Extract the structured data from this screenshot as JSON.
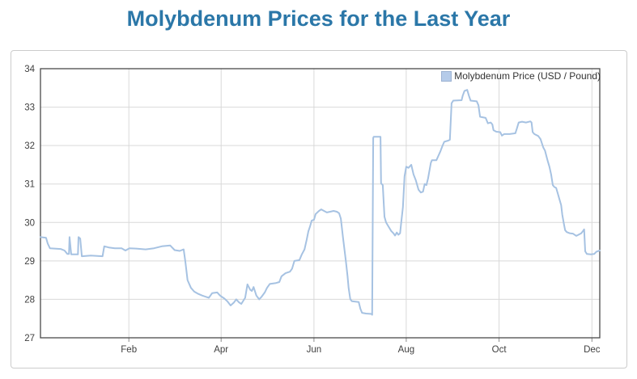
{
  "page": {
    "title": "Molybdenum Prices for the Last Year"
  },
  "colors": {
    "title": "#2b77a8",
    "line": "#a6c2e2",
    "grid": "#d9d9d9",
    "frame": "#4a4a4a",
    "tick": "#8a8a8a",
    "axis_label": "#404040",
    "panel_border": "#cccccc",
    "legend_text": "#333333",
    "legend_swatch_fill": "#b5cbe9",
    "legend_swatch_border": "#9db3d3"
  },
  "legend": {
    "label": "Molybdenum Price (USD / Pound)"
  },
  "chart_data": {
    "type": "line",
    "title": "Molybdenum Prices for the Last Year",
    "series_label": "Molybdenum Price (USD / Pound)",
    "xlabel": "",
    "ylabel": "",
    "unit": "USD / Pound",
    "ylim": [
      27,
      34
    ],
    "yticks": [
      27,
      28,
      29,
      30,
      31,
      32,
      33,
      34
    ],
    "xticks": [
      {
        "label": "Feb",
        "t": 0.158
      },
      {
        "label": "Apr",
        "t": 0.323
      },
      {
        "label": "Jun",
        "t": 0.489
      },
      {
        "label": "Aug",
        "t": 0.654
      },
      {
        "label": "Oct",
        "t": 0.82
      },
      {
        "label": "Dec",
        "t": 0.986
      }
    ],
    "x_span": "trailing 12 months (early Dec to early Dec)",
    "grid": true,
    "legend_position": "top-right",
    "series": [
      {
        "name": "Molybdenum Price (USD / Pound)",
        "points": [
          [
            0.0,
            29.62
          ],
          [
            0.01,
            29.6
          ],
          [
            0.013,
            29.45
          ],
          [
            0.017,
            29.33
          ],
          [
            0.036,
            29.31
          ],
          [
            0.043,
            29.27
          ],
          [
            0.048,
            29.18
          ],
          [
            0.051,
            29.18
          ],
          [
            0.052,
            29.62
          ],
          [
            0.055,
            29.17
          ],
          [
            0.067,
            29.17
          ],
          [
            0.068,
            29.62
          ],
          [
            0.071,
            29.58
          ],
          [
            0.074,
            29.12
          ],
          [
            0.09,
            29.14
          ],
          [
            0.111,
            29.12
          ],
          [
            0.114,
            29.38
          ],
          [
            0.122,
            29.35
          ],
          [
            0.133,
            29.33
          ],
          [
            0.145,
            29.33
          ],
          [
            0.152,
            29.27
          ],
          [
            0.159,
            29.33
          ],
          [
            0.171,
            29.32
          ],
          [
            0.188,
            29.3
          ],
          [
            0.203,
            29.33
          ],
          [
            0.217,
            29.38
          ],
          [
            0.232,
            29.4
          ],
          [
            0.24,
            29.28
          ],
          [
            0.249,
            29.26
          ],
          [
            0.256,
            29.3
          ],
          [
            0.259,
            28.98
          ],
          [
            0.263,
            28.5
          ],
          [
            0.269,
            28.3
          ],
          [
            0.275,
            28.2
          ],
          [
            0.281,
            28.15
          ],
          [
            0.289,
            28.1
          ],
          [
            0.297,
            28.06
          ],
          [
            0.301,
            28.04
          ],
          [
            0.307,
            28.16
          ],
          [
            0.316,
            28.18
          ],
          [
            0.321,
            28.1
          ],
          [
            0.329,
            28.02
          ],
          [
            0.334,
            27.95
          ],
          [
            0.34,
            27.84
          ],
          [
            0.346,
            27.92
          ],
          [
            0.35,
            28.0
          ],
          [
            0.355,
            27.92
          ],
          [
            0.359,
            27.88
          ],
          [
            0.366,
            28.04
          ],
          [
            0.37,
            28.39
          ],
          [
            0.375,
            28.25
          ],
          [
            0.378,
            28.22
          ],
          [
            0.381,
            28.32
          ],
          [
            0.386,
            28.1
          ],
          [
            0.391,
            28.0
          ],
          [
            0.395,
            28.06
          ],
          [
            0.401,
            28.18
          ],
          [
            0.405,
            28.3
          ],
          [
            0.41,
            28.4
          ],
          [
            0.42,
            28.42
          ],
          [
            0.427,
            28.45
          ],
          [
            0.431,
            28.6
          ],
          [
            0.438,
            28.68
          ],
          [
            0.446,
            28.72
          ],
          [
            0.45,
            28.8
          ],
          [
            0.454,
            29.0
          ],
          [
            0.463,
            29.02
          ],
          [
            0.467,
            29.16
          ],
          [
            0.472,
            29.3
          ],
          [
            0.476,
            29.55
          ],
          [
            0.479,
            29.77
          ],
          [
            0.482,
            29.9
          ],
          [
            0.485,
            30.05
          ],
          [
            0.489,
            30.07
          ],
          [
            0.492,
            30.22
          ],
          [
            0.498,
            30.3
          ],
          [
            0.502,
            30.34
          ],
          [
            0.507,
            30.3
          ],
          [
            0.512,
            30.26
          ],
          [
            0.518,
            30.28
          ],
          [
            0.524,
            30.3
          ],
          [
            0.53,
            30.28
          ],
          [
            0.534,
            30.24
          ],
          [
            0.537,
            30.1
          ],
          [
            0.541,
            29.6
          ],
          [
            0.546,
            29.0
          ],
          [
            0.549,
            28.6
          ],
          [
            0.551,
            28.3
          ],
          [
            0.554,
            28.0
          ],
          [
            0.557,
            27.95
          ],
          [
            0.569,
            27.93
          ],
          [
            0.572,
            27.75
          ],
          [
            0.575,
            27.65
          ],
          [
            0.582,
            27.63
          ],
          [
            0.592,
            27.62
          ],
          [
            0.593,
            27.6
          ],
          [
            0.595,
            32.2
          ],
          [
            0.596,
            32.23
          ],
          [
            0.608,
            32.23
          ],
          [
            0.609,
            31.02
          ],
          [
            0.612,
            30.97
          ],
          [
            0.615,
            30.15
          ],
          [
            0.618,
            30.0
          ],
          [
            0.622,
            29.9
          ],
          [
            0.627,
            29.78
          ],
          [
            0.631,
            29.72
          ],
          [
            0.634,
            29.66
          ],
          [
            0.637,
            29.74
          ],
          [
            0.64,
            29.68
          ],
          [
            0.643,
            29.72
          ],
          [
            0.645,
            30.0
          ],
          [
            0.648,
            30.4
          ],
          [
            0.651,
            31.2
          ],
          [
            0.654,
            31.45
          ],
          [
            0.658,
            31.42
          ],
          [
            0.663,
            31.5
          ],
          [
            0.667,
            31.25
          ],
          [
            0.671,
            31.1
          ],
          [
            0.676,
            30.85
          ],
          [
            0.68,
            30.78
          ],
          [
            0.684,
            30.8
          ],
          [
            0.687,
            31.0
          ],
          [
            0.69,
            30.97
          ],
          [
            0.693,
            31.15
          ],
          [
            0.698,
            31.55
          ],
          [
            0.7,
            31.62
          ],
          [
            0.708,
            31.62
          ],
          [
            0.711,
            31.72
          ],
          [
            0.715,
            31.85
          ],
          [
            0.719,
            32.0
          ],
          [
            0.722,
            32.1
          ],
          [
            0.729,
            32.13
          ],
          [
            0.732,
            32.15
          ],
          [
            0.735,
            33.1
          ],
          [
            0.738,
            33.17
          ],
          [
            0.753,
            33.18
          ],
          [
            0.755,
            33.3
          ],
          [
            0.758,
            33.42
          ],
          [
            0.763,
            33.45
          ],
          [
            0.766,
            33.3
          ],
          [
            0.769,
            33.17
          ],
          [
            0.78,
            33.15
          ],
          [
            0.783,
            33.05
          ],
          [
            0.786,
            32.75
          ],
          [
            0.796,
            32.72
          ],
          [
            0.8,
            32.58
          ],
          [
            0.805,
            32.6
          ],
          [
            0.808,
            32.55
          ],
          [
            0.81,
            32.4
          ],
          [
            0.815,
            32.36
          ],
          [
            0.822,
            32.35
          ],
          [
            0.825,
            32.26
          ],
          [
            0.829,
            32.3
          ],
          [
            0.839,
            32.3
          ],
          [
            0.849,
            32.32
          ],
          [
            0.852,
            32.45
          ],
          [
            0.855,
            32.6
          ],
          [
            0.861,
            32.62
          ],
          [
            0.868,
            32.6
          ],
          [
            0.876,
            32.63
          ],
          [
            0.878,
            32.6
          ],
          [
            0.88,
            32.35
          ],
          [
            0.883,
            32.3
          ],
          [
            0.89,
            32.25
          ],
          [
            0.894,
            32.17
          ],
          [
            0.899,
            31.95
          ],
          [
            0.902,
            31.87
          ],
          [
            0.905,
            31.7
          ],
          [
            0.907,
            31.6
          ],
          [
            0.91,
            31.45
          ],
          [
            0.913,
            31.25
          ],
          [
            0.916,
            30.97
          ],
          [
            0.919,
            30.92
          ],
          [
            0.922,
            30.9
          ],
          [
            0.925,
            30.75
          ],
          [
            0.928,
            30.6
          ],
          [
            0.931,
            30.45
          ],
          [
            0.933,
            30.2
          ],
          [
            0.936,
            29.95
          ],
          [
            0.938,
            29.8
          ],
          [
            0.941,
            29.75
          ],
          [
            0.946,
            29.72
          ],
          [
            0.952,
            29.71
          ],
          [
            0.958,
            29.65
          ],
          [
            0.962,
            29.68
          ],
          [
            0.967,
            29.72
          ],
          [
            0.97,
            29.78
          ],
          [
            0.972,
            29.82
          ],
          [
            0.974,
            29.25
          ],
          [
            0.977,
            29.18
          ],
          [
            0.984,
            29.17
          ],
          [
            0.99,
            29.18
          ],
          [
            0.994,
            29.24
          ],
          [
            1.0,
            29.27
          ]
        ]
      }
    ]
  }
}
